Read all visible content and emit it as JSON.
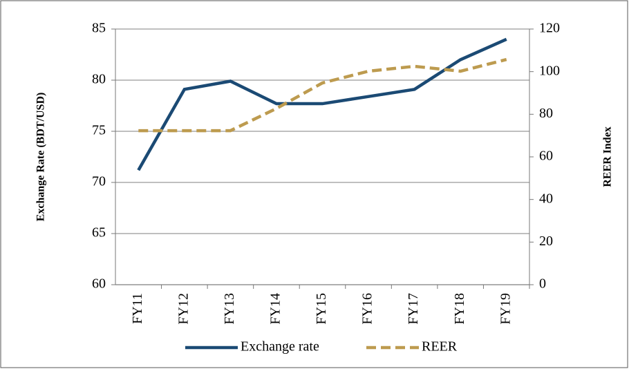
{
  "chart_data": {
    "type": "line",
    "categories": [
      "FY11",
      "FY12",
      "FY13",
      "FY14",
      "FY15",
      "FY16",
      "FY17",
      "FY18",
      "FY19"
    ],
    "series": [
      {
        "name": "Exchange rate",
        "color": "#1b4a74",
        "values": [
          71.2,
          79.1,
          79.9,
          77.7,
          77.7,
          78.4,
          79.1,
          82.0,
          84.0
        ]
      },
      {
        "name": "REER",
        "color": "#bd9b4f",
        "axis": "y2",
        "dashed": true,
        "values": [
          72.3,
          72.3,
          72.3,
          82.7,
          94.7,
          100.2,
          102.5,
          100.2,
          105.7
        ]
      }
    ],
    "ylabel": "Exchange Rate (BDT/USD)",
    "y2label": "REER Index",
    "ylim": [
      60,
      85
    ],
    "yticks": [
      60,
      65,
      70,
      75,
      80,
      85
    ],
    "y2lim": [
      0,
      120
    ],
    "y2ticks": [
      0,
      20,
      40,
      60,
      80,
      100,
      120
    ],
    "grid": true,
    "legend": "bottom"
  }
}
